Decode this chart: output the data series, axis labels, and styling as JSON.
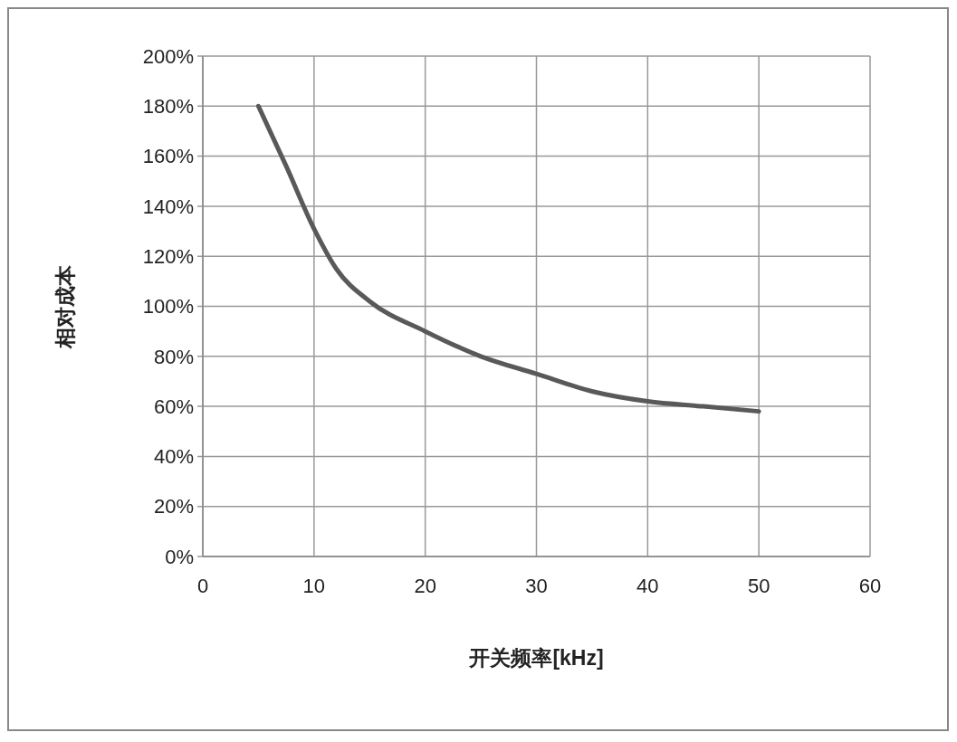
{
  "chart_data": {
    "type": "line",
    "xlabel": "开关频率[kHz]",
    "ylabel": "相对成本",
    "x": [
      5,
      7.5,
      10,
      12,
      15,
      20,
      25,
      30,
      35,
      40,
      45,
      50
    ],
    "series": [
      {
        "color": "#595959",
        "values": [
          180,
          156,
          131,
          115,
          102,
          90,
          80,
          73,
          66,
          62,
          60,
          58
        ]
      }
    ],
    "xlim": [
      0,
      60
    ],
    "xticks": [
      0,
      10,
      20,
      30,
      40,
      50,
      60
    ],
    "ylim": [
      0,
      200
    ],
    "yticks": [
      {
        "value": 0,
        "label": "0%"
      },
      {
        "value": 20,
        "label": "20%"
      },
      {
        "value": 40,
        "label": "40%"
      },
      {
        "value": 60,
        "label": "60%"
      },
      {
        "value": 80,
        "label": "80%"
      },
      {
        "value": 100,
        "label": "100%"
      },
      {
        "value": 120,
        "label": "120%"
      },
      {
        "value": 140,
        "label": "140%"
      },
      {
        "value": 160,
        "label": "160%"
      },
      {
        "value": 180,
        "label": "180%"
      },
      {
        "value": 200,
        "label": "200%"
      }
    ],
    "grid": true,
    "marker": "none",
    "line_style": "solid"
  }
}
